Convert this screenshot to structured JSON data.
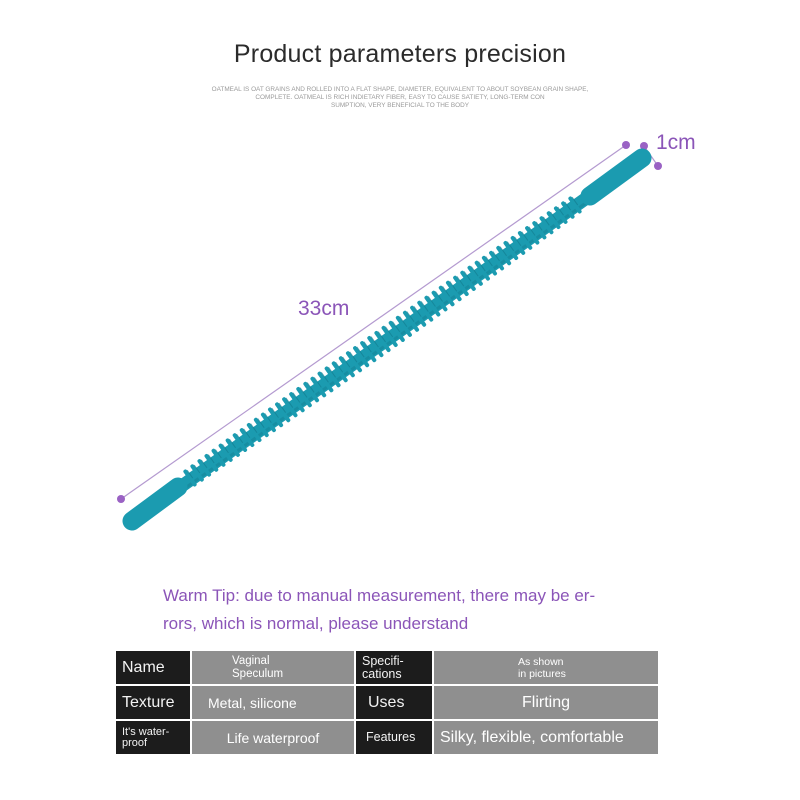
{
  "header": {
    "title": "Product parameters precision",
    "subtitle_lines": [
      "OATMEAL IS OAT GRAINS AND ROLLED INTO A FLAT SHAPE, DIAMETER, EQUIVALENT TO ABOUT SOYBEAN GRAIN SHAPE,",
      "COMPLETE. OATMEAL IS RICH INDIETARY FIBER, EASY TO CAUSE SATIETY, LONG-TERM CON",
      "SUMPTION, VERY BENEFICIAL TO THE BODY"
    ]
  },
  "dimensions": {
    "length_label": "33cm",
    "diameter_label": "1cm"
  },
  "colors": {
    "product": "#1b9bb0",
    "product_shadow": "#137f92",
    "measure": "#8b55b8"
  },
  "tip": {
    "line1": "Warm Tip: due to manual measurement, there may be er-",
    "line2": "rors, which is normal, please understand"
  },
  "params": {
    "row1": {
      "key1": "Name",
      "val1": [
        "Vaginal",
        "Speculum"
      ],
      "key2": [
        "Specifi-",
        "cations"
      ],
      "val2": [
        "As shown",
        "in pictures"
      ]
    },
    "row2": {
      "key1": "Texture",
      "val1": "Metal, silicone",
      "key2": "Uses",
      "val2": "Flirting"
    },
    "row3": {
      "key1": [
        "It's water-",
        "proof"
      ],
      "val1": "Life waterproof",
      "key2": "Features",
      "val2": "Silky, flexible, comfortable"
    }
  }
}
